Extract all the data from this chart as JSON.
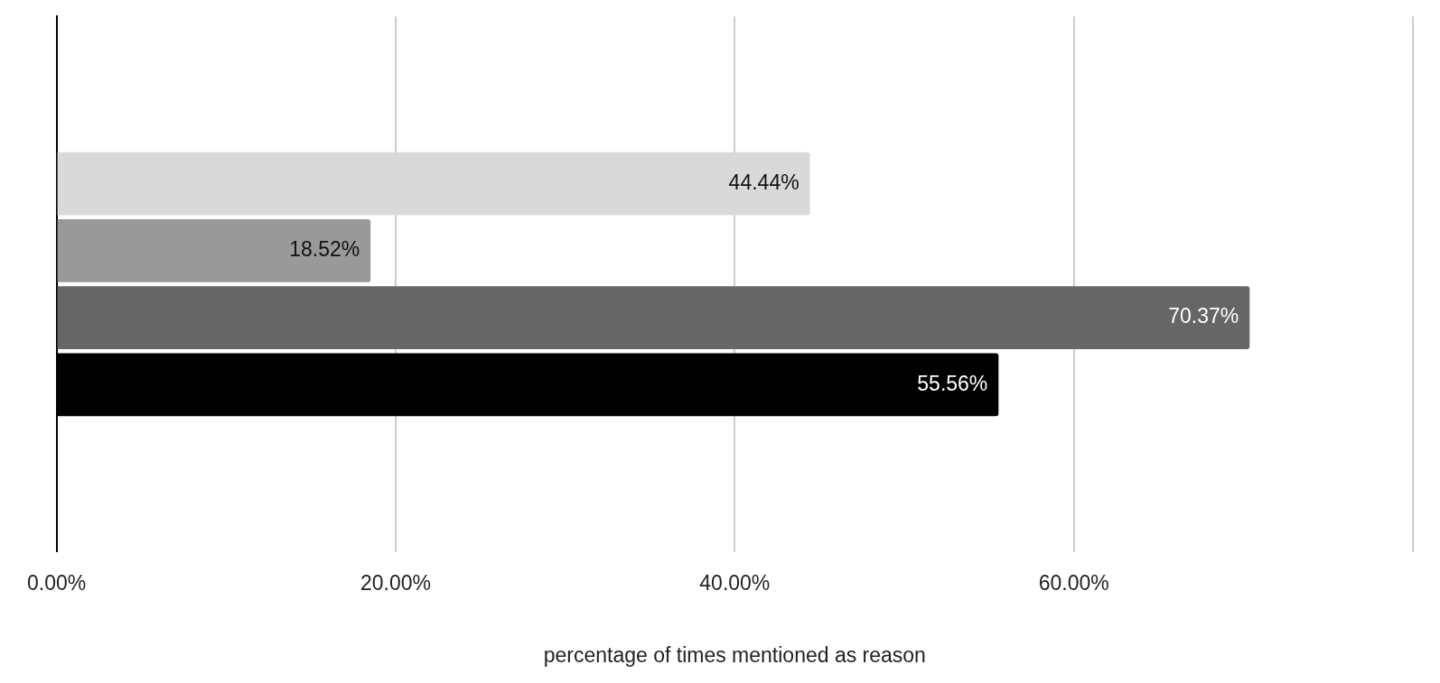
{
  "chart_data": {
    "type": "bar",
    "orientation": "horizontal",
    "xlabel": "percentage of times mentioned as reason",
    "categories": [
      null
    ],
    "series": [
      {
        "color": "#d9d9d9",
        "values": [
          44.44
        ],
        "value_labels": [
          "44.44%"
        ]
      },
      {
        "color": "#999999",
        "values": [
          18.52
        ],
        "value_labels": [
          "18.52%"
        ]
      },
      {
        "color": "#666666",
        "values": [
          70.37
        ],
        "value_labels": [
          "70.37%"
        ]
      },
      {
        "color": "#000000",
        "values": [
          55.56
        ],
        "value_labels": [
          "55.56%"
        ]
      }
    ],
    "xlim": [
      0,
      80
    ],
    "xticks": [
      {
        "value": 0,
        "label": "0.00%"
      },
      {
        "value": 20,
        "label": "20.00%"
      },
      {
        "value": 40,
        "label": "40.00%"
      },
      {
        "value": 60,
        "label": "60.00%"
      },
      {
        "value": 80,
        "label": null
      }
    ],
    "grid": "x",
    "legend": false
  }
}
